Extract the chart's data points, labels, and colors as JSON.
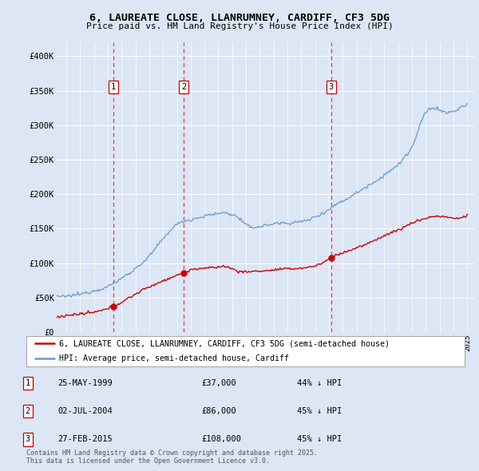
{
  "title": "6, LAUREATE CLOSE, LLANRUMNEY, CARDIFF, CF3 5DG",
  "subtitle": "Price paid vs. HM Land Registry's House Price Index (HPI)",
  "background_color": "#dce6f5",
  "plot_bg_color": "#dce6f5",
  "ylim": [
    0,
    420000
  ],
  "yticks": [
    0,
    50000,
    100000,
    150000,
    200000,
    250000,
    300000,
    350000,
    400000
  ],
  "ytick_labels": [
    "£0",
    "£50K",
    "£100K",
    "£150K",
    "£200K",
    "£250K",
    "£300K",
    "£350K",
    "£400K"
  ],
  "transactions": [
    {
      "date": 1999.4,
      "price": 37000,
      "label": "1"
    },
    {
      "date": 2004.5,
      "price": 86000,
      "label": "2"
    },
    {
      "date": 2015.15,
      "price": 108000,
      "label": "3"
    }
  ],
  "transaction_table": [
    {
      "num": "1",
      "date": "25-MAY-1999",
      "price": "£37,000",
      "pct": "44% ↓ HPI"
    },
    {
      "num": "2",
      "date": "02-JUL-2004",
      "price": "£86,000",
      "pct": "45% ↓ HPI"
    },
    {
      "num": "3",
      "date": "27-FEB-2015",
      "price": "£108,000",
      "pct": "45% ↓ HPI"
    }
  ],
  "legend_house": "6, LAUREATE CLOSE, LLANRUMNEY, CARDIFF, CF3 5DG (semi-detached house)",
  "legend_hpi": "HPI: Average price, semi-detached house, Cardiff",
  "footer": "Contains HM Land Registry data © Crown copyright and database right 2025.\nThis data is licensed under the Open Government Licence v3.0.",
  "house_color": "#cc0000",
  "hpi_color": "#6699cc",
  "grid_color": "#ffffff",
  "dashed_color": "#dd2222",
  "xlim_left": 1995.3,
  "xlim_right": 2025.5
}
